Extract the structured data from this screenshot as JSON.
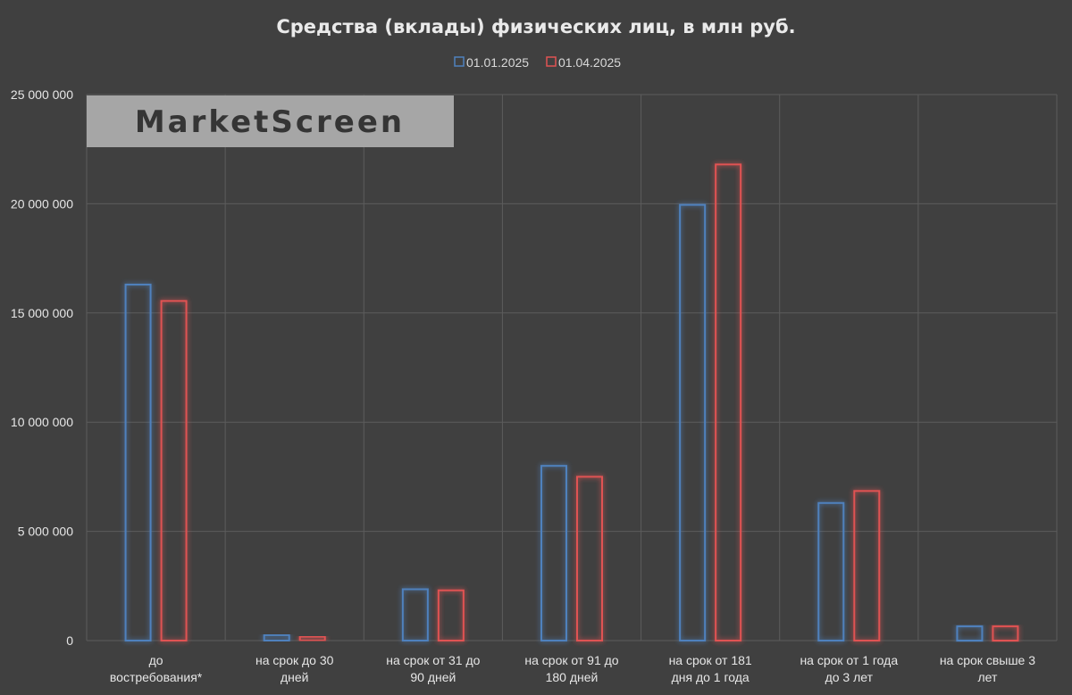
{
  "watermark": "MarketScreen",
  "chart_data": {
    "type": "bar",
    "title": "Средства (вклады) физических лиц, в млн руб.",
    "xlabel": "",
    "ylabel": "",
    "ylim": [
      0,
      25000000
    ],
    "y_ticks": [
      0,
      5000000,
      10000000,
      15000000,
      20000000,
      25000000
    ],
    "y_tick_labels": [
      "0",
      "5 000 000",
      "10 000 000",
      "15 000 000",
      "20 000 000",
      "25 000 000"
    ],
    "grid": true,
    "legend_position": "top-center",
    "categories": [
      "до востребования*",
      "на срок до 30 дней",
      "на срок от 31 до 90 дней",
      "на срок от 91  до 180 дней",
      "на срок от 181 дня до 1 года",
      "на срок от 1 года до 3 лет",
      "на срок свыше 3 лет"
    ],
    "category_lines": [
      [
        "до",
        "востребования*"
      ],
      [
        "на срок до 30",
        "дней"
      ],
      [
        "на срок от 31 до",
        "90 дней"
      ],
      [
        "на срок от 91  до",
        "180 дней"
      ],
      [
        "на срок от 181",
        "дня до 1 года"
      ],
      [
        "на срок от 1 года",
        "до 3 лет"
      ],
      [
        "на срок свыше 3",
        "лет"
      ]
    ],
    "series": [
      {
        "name": "01.01.2025",
        "color": "#4f81bd",
        "values": [
          16300000,
          250000,
          2350000,
          8000000,
          19950000,
          6300000,
          650000
        ]
      },
      {
        "name": "01.04.2025",
        "color": "#e05252",
        "values": [
          15550000,
          180000,
          2300000,
          7500000,
          21800000,
          6850000,
          650000
        ]
      }
    ]
  }
}
